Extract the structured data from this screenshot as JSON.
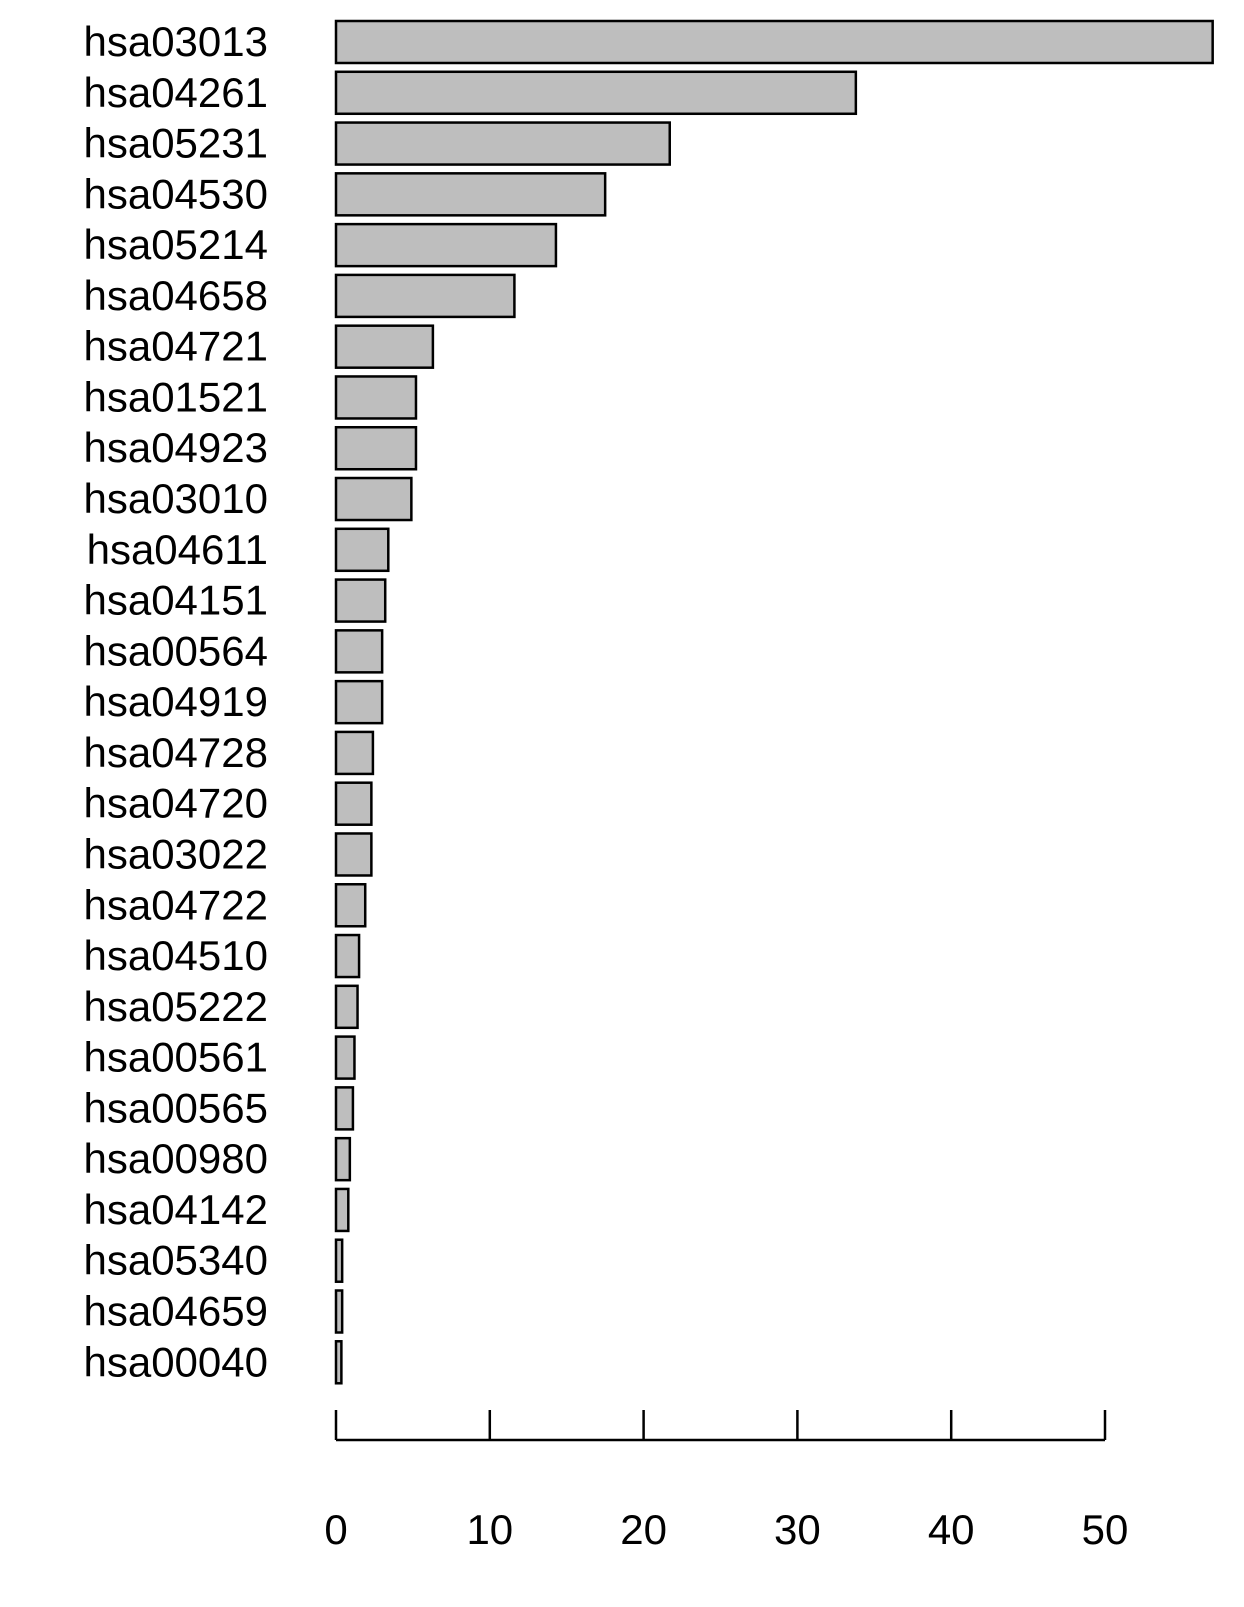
{
  "chart_data": {
    "type": "bar",
    "orientation": "horizontal",
    "categories": [
      "hsa03013",
      "hsa04261",
      "hsa05231",
      "hsa04530",
      "hsa05214",
      "hsa04658",
      "hsa04721",
      "hsa01521",
      "hsa04923",
      "hsa03010",
      "hsa04611",
      "hsa04151",
      "hsa00564",
      "hsa04919",
      "hsa04728",
      "hsa04720",
      "hsa03022",
      "hsa04722",
      "hsa04510",
      "hsa05222",
      "hsa00561",
      "hsa00565",
      "hsa00980",
      "hsa04142",
      "hsa05340",
      "hsa04659",
      "hsa00040"
    ],
    "values": [
      57.0,
      33.8,
      21.7,
      17.5,
      14.3,
      11.6,
      6.3,
      5.2,
      5.2,
      4.9,
      3.4,
      3.2,
      3.0,
      3.0,
      2.4,
      2.3,
      2.3,
      1.9,
      1.5,
      1.4,
      1.2,
      1.1,
      0.9,
      0.8,
      0.4,
      0.4,
      0.35
    ],
    "xlim": [
      0,
      57.0
    ],
    "x_ticks": [
      "0",
      "10",
      "20",
      "30",
      "40",
      "50"
    ],
    "grid": false,
    "legend": "none",
    "bar_fill": "#bebebe",
    "bar_stroke": "#000000"
  }
}
